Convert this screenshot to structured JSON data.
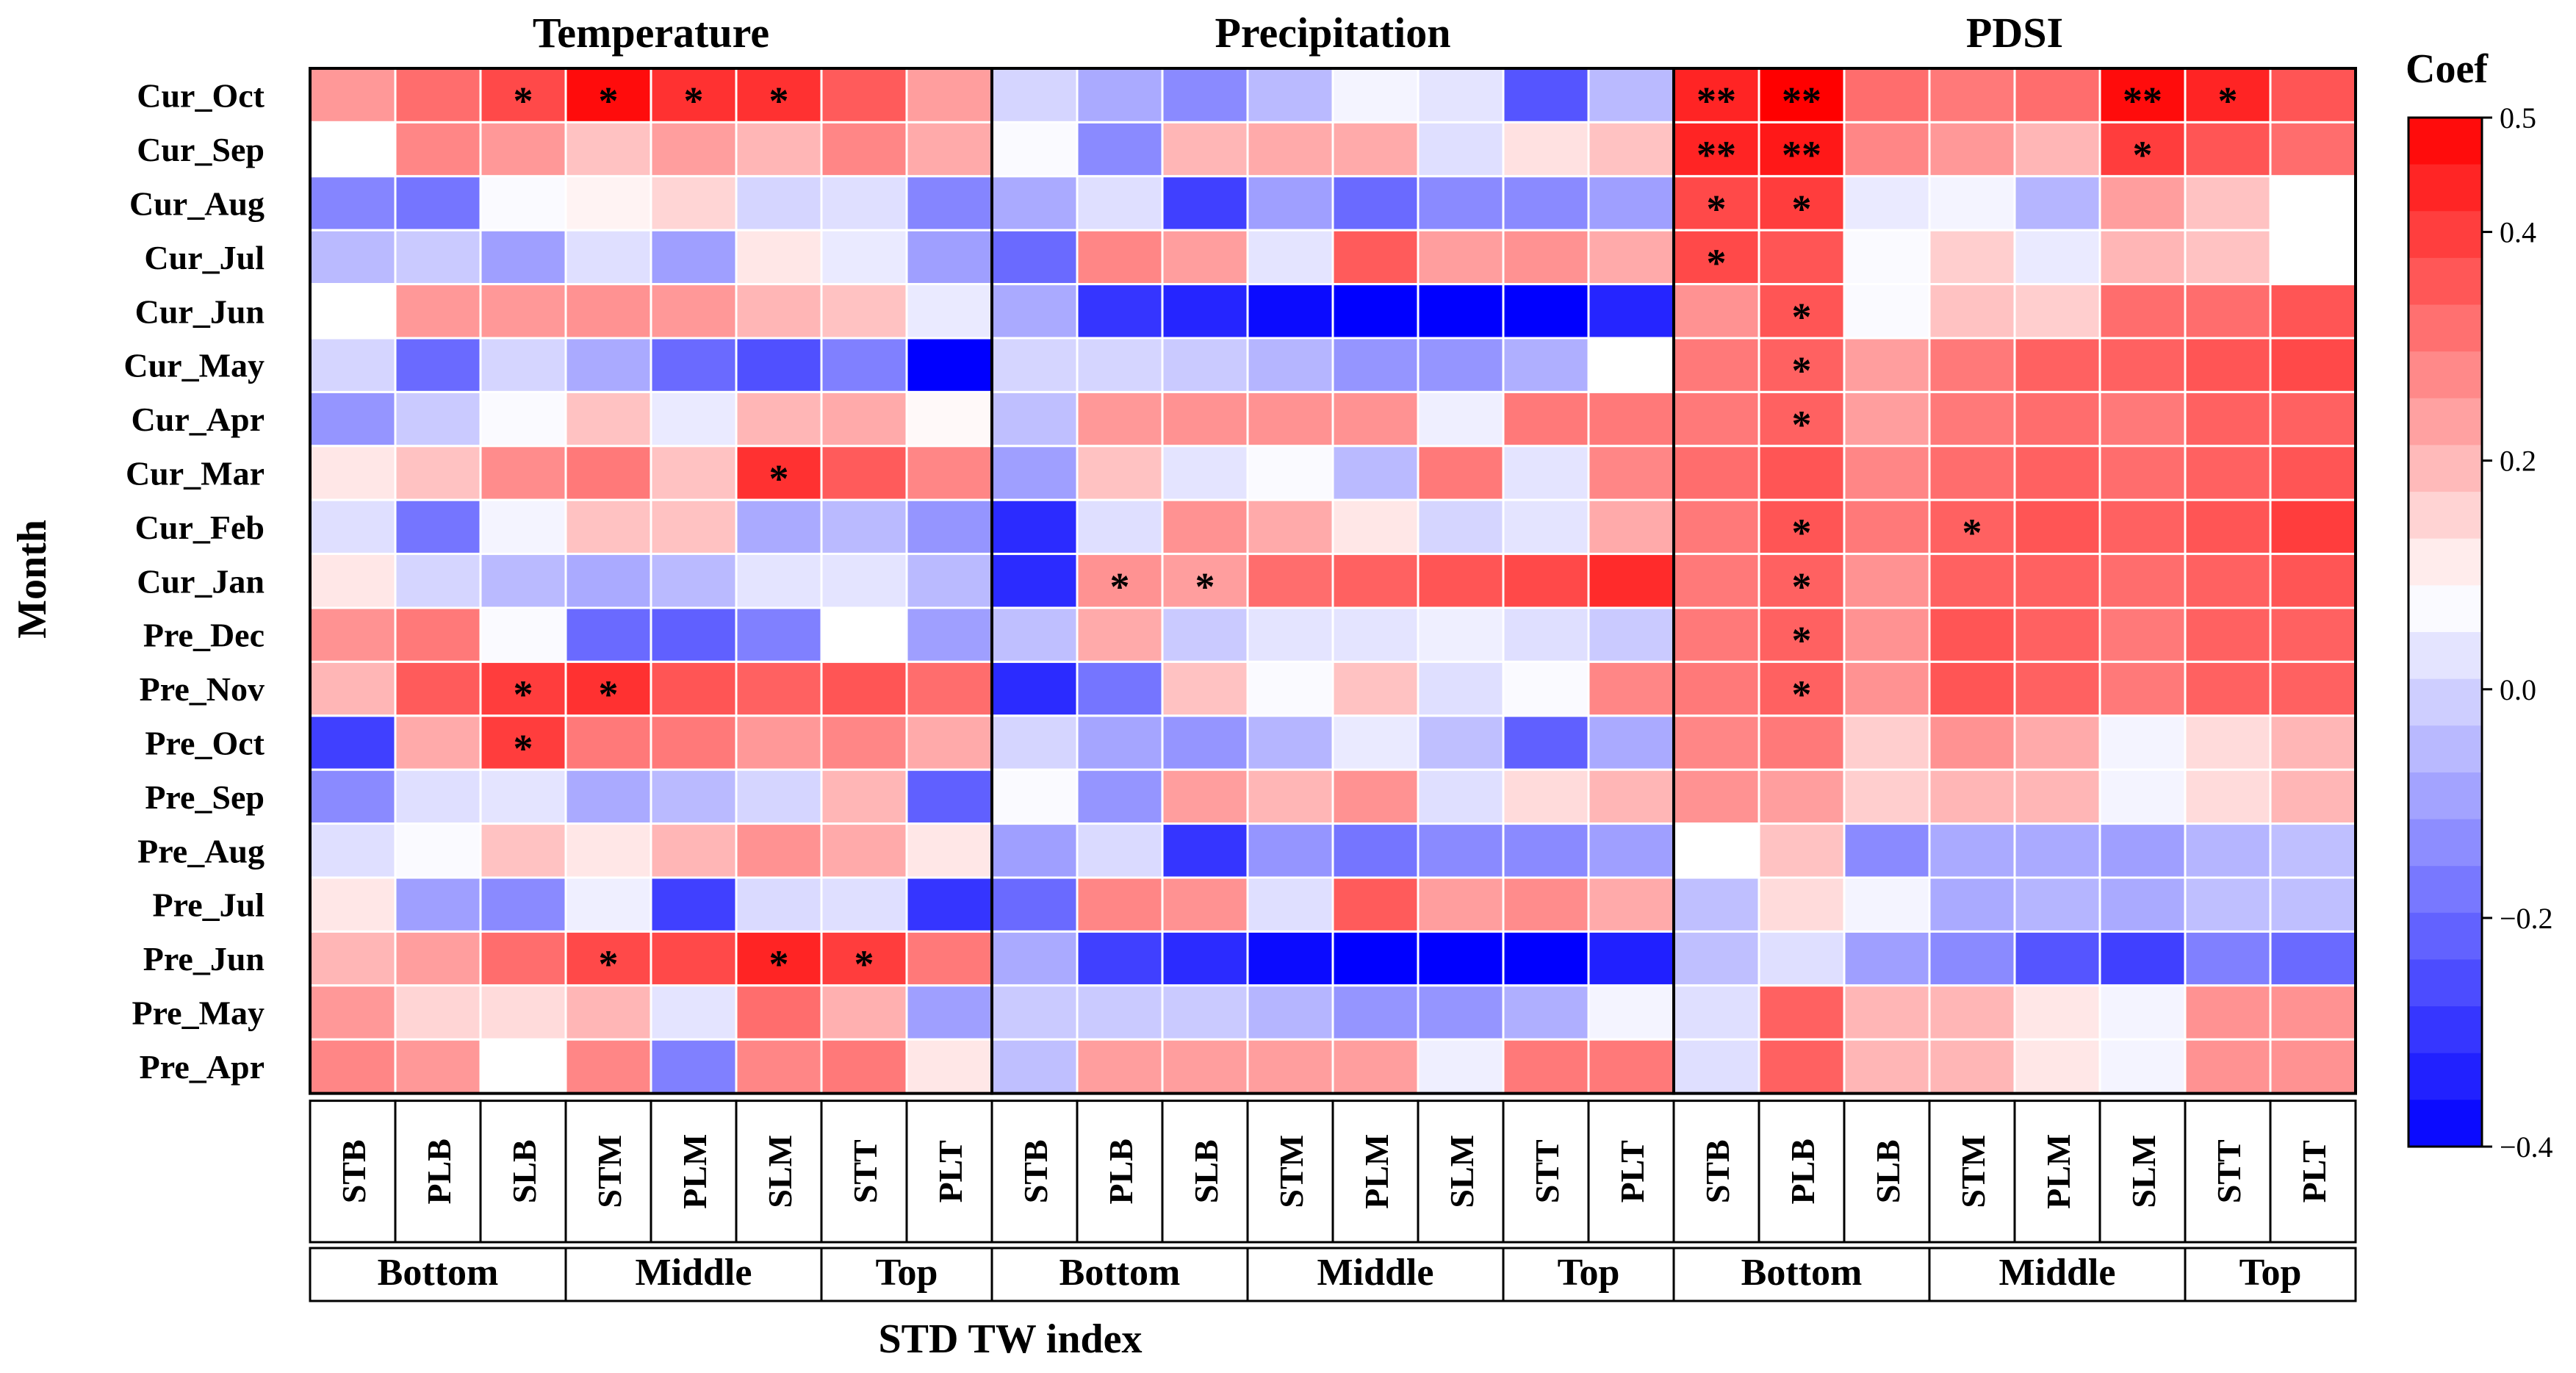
{
  "chart_data": {
    "type": "heatmap",
    "ylabel": "Month",
    "xlabel": "STD TW index",
    "colorbar": {
      "title": "Coef",
      "min": -0.4,
      "max": 0.5,
      "ticks": [
        "0.5",
        "0.4",
        "0.2",
        "0.0",
        "−0.2",
        "−0.4"
      ],
      "tick_values": [
        0.5,
        0.4,
        0.2,
        0.0,
        -0.2,
        -0.4
      ]
    },
    "colors": {
      "low": "#0000ff",
      "mid": "#ffffff",
      "high": "#ff0000",
      "mid_value": 0.08
    },
    "months": [
      "Cur_Oct",
      "Cur_Sep",
      "Cur_Aug",
      "Cur_Jul",
      "Cur_Jun",
      "Cur_May",
      "Cur_Apr",
      "Cur_Mar",
      "Cur_Feb",
      "Cur_Jan",
      "Pre_Dec",
      "Pre_Nov",
      "Pre_Oct",
      "Pre_Sep",
      "Pre_Aug",
      "Pre_Jul",
      "Pre_Jun",
      "Pre_May",
      "Pre_Apr"
    ],
    "indices": [
      "STB",
      "PLB",
      "SLB",
      "STM",
      "PLM",
      "SLM",
      "STT",
      "PLT"
    ],
    "groups": [
      {
        "label": "Bottom",
        "span": 3
      },
      {
        "label": "Middle",
        "span": 3
      },
      {
        "label": "Top",
        "span": 2
      }
    ],
    "panels": [
      {
        "title": "Temperature",
        "values": [
          [
            0.25,
            0.32,
            0.38,
            0.48,
            0.42,
            0.42,
            0.35,
            0.24
          ],
          [
            0.08,
            0.28,
            0.25,
            0.18,
            0.24,
            0.2,
            0.28,
            0.22
          ],
          [
            -0.15,
            -0.18,
            0.07,
            0.1,
            0.15,
            0.0,
            0.02,
            -0.15
          ],
          [
            -0.05,
            -0.02,
            -0.1,
            0.02,
            -0.1,
            0.12,
            0.04,
            -0.1
          ],
          [
            0.08,
            0.25,
            0.25,
            0.26,
            0.25,
            0.2,
            0.18,
            0.04
          ],
          [
            0.0,
            -0.2,
            0.0,
            -0.08,
            -0.2,
            -0.25,
            -0.16,
            -0.4
          ],
          [
            -0.12,
            -0.02,
            0.07,
            0.18,
            0.04,
            0.2,
            0.22,
            0.09
          ],
          [
            0.12,
            0.18,
            0.27,
            0.3,
            0.18,
            0.42,
            0.35,
            0.28
          ],
          [
            0.02,
            -0.18,
            0.06,
            0.18,
            0.18,
            -0.08,
            -0.05,
            -0.12
          ],
          [
            0.12,
            0.0,
            -0.05,
            -0.08,
            -0.05,
            0.03,
            0.03,
            -0.05
          ],
          [
            0.26,
            0.3,
            0.07,
            -0.2,
            -0.22,
            -0.16,
            0.08,
            -0.1
          ],
          [
            0.2,
            0.35,
            0.4,
            0.42,
            0.36,
            0.34,
            0.36,
            0.32
          ],
          [
            -0.28,
            0.22,
            0.4,
            0.3,
            0.3,
            0.25,
            0.28,
            0.22
          ],
          [
            -0.14,
            0.02,
            0.03,
            -0.08,
            -0.05,
            0.0,
            0.2,
            -0.22
          ],
          [
            0.02,
            0.07,
            0.18,
            0.12,
            0.2,
            0.26,
            0.22,
            0.12
          ],
          [
            0.12,
            -0.1,
            -0.14,
            0.05,
            -0.28,
            0.01,
            0.02,
            -0.3
          ],
          [
            0.2,
            0.24,
            0.32,
            0.38,
            0.38,
            0.44,
            0.4,
            0.3
          ],
          [
            0.25,
            0.15,
            0.14,
            0.2,
            0.03,
            0.32,
            0.21,
            -0.1
          ],
          [
            0.28,
            0.25,
            0.08,
            0.28,
            -0.16,
            0.28,
            0.3,
            0.12
          ]
        ],
        "stars": [
          [
            "",
            "",
            "*",
            "*",
            "*",
            "*",
            "",
            ""
          ],
          [
            "",
            "",
            "",
            "",
            "",
            "",
            "",
            ""
          ],
          [
            "",
            "",
            "",
            "",
            "",
            "",
            "",
            ""
          ],
          [
            "",
            "",
            "",
            "",
            "",
            "",
            "",
            ""
          ],
          [
            "",
            "",
            "",
            "",
            "",
            "",
            "",
            ""
          ],
          [
            "",
            "",
            "",
            "",
            "",
            "",
            "",
            ""
          ],
          [
            "",
            "",
            "",
            "",
            "",
            "",
            "",
            ""
          ],
          [
            "",
            "",
            "",
            "",
            "",
            "*",
            "",
            ""
          ],
          [
            "",
            "",
            "",
            "",
            "",
            "",
            "",
            ""
          ],
          [
            "",
            "",
            "",
            "",
            "",
            "",
            "",
            ""
          ],
          [
            "",
            "",
            "",
            "",
            "",
            "",
            "",
            ""
          ],
          [
            "",
            "",
            "*",
            "*",
            "",
            "",
            "",
            ""
          ],
          [
            "",
            "",
            "*",
            "",
            "",
            "",
            "",
            ""
          ],
          [
            "",
            "",
            "",
            "",
            "",
            "",
            "",
            ""
          ],
          [
            "",
            "",
            "",
            "",
            "",
            "",
            "",
            ""
          ],
          [
            "",
            "",
            "",
            "",
            "",
            "",
            "",
            ""
          ],
          [
            "",
            "",
            "",
            "*",
            "",
            "*",
            "*",
            ""
          ],
          [
            "",
            "",
            "",
            "",
            "",
            "",
            "",
            ""
          ],
          [
            "",
            "",
            "",
            "",
            "",
            "",
            "",
            ""
          ]
        ]
      },
      {
        "title": "Precipitation",
        "values": [
          [
            0.0,
            -0.08,
            -0.14,
            -0.05,
            0.06,
            0.03,
            -0.24,
            -0.05
          ],
          [
            0.07,
            -0.14,
            0.2,
            0.22,
            0.22,
            0.02,
            0.13,
            0.18
          ],
          [
            -0.08,
            0.02,
            -0.28,
            -0.1,
            -0.2,
            -0.14,
            -0.14,
            -0.1
          ],
          [
            -0.2,
            0.28,
            0.24,
            0.03,
            0.35,
            0.24,
            0.26,
            0.22
          ],
          [
            -0.08,
            -0.3,
            -0.33,
            -0.38,
            -0.4,
            -0.4,
            -0.4,
            -0.33
          ],
          [
            0.0,
            0.0,
            -0.02,
            -0.06,
            -0.12,
            -0.12,
            -0.07,
            0.08
          ],
          [
            -0.04,
            0.25,
            0.26,
            0.26,
            0.26,
            0.05,
            0.3,
            0.3
          ],
          [
            -0.1,
            0.18,
            0.03,
            0.07,
            -0.05,
            0.3,
            0.03,
            0.28
          ],
          [
            -0.32,
            0.02,
            0.26,
            0.22,
            0.12,
            0.0,
            0.03,
            0.22
          ],
          [
            -0.32,
            0.26,
            0.24,
            0.32,
            0.34,
            0.36,
            0.38,
            0.43
          ],
          [
            -0.04,
            0.22,
            -0.02,
            0.03,
            0.03,
            0.05,
            0.02,
            -0.02
          ],
          [
            -0.32,
            -0.18,
            0.18,
            0.07,
            0.18,
            0.02,
            0.07,
            0.28
          ],
          [
            0.0,
            -0.09,
            -0.12,
            -0.06,
            0.04,
            -0.04,
            -0.22,
            -0.08
          ],
          [
            0.07,
            -0.12,
            0.24,
            0.2,
            0.26,
            0.02,
            0.14,
            0.2
          ],
          [
            -0.1,
            0.01,
            -0.3,
            -0.12,
            -0.18,
            -0.14,
            -0.14,
            -0.1
          ],
          [
            -0.2,
            0.28,
            0.26,
            0.02,
            0.35,
            0.24,
            0.27,
            0.22
          ],
          [
            -0.08,
            -0.28,
            -0.32,
            -0.38,
            -0.4,
            -0.4,
            -0.4,
            -0.34
          ],
          [
            -0.02,
            -0.02,
            -0.02,
            -0.06,
            -0.12,
            -0.12,
            -0.07,
            0.06
          ],
          [
            -0.04,
            0.24,
            0.24,
            0.24,
            0.24,
            0.05,
            0.3,
            0.3
          ]
        ],
        "stars": [
          [
            "",
            "",
            "",
            "",
            "",
            "",
            "",
            ""
          ],
          [
            "",
            "",
            "",
            "",
            "",
            "",
            "",
            ""
          ],
          [
            "",
            "",
            "",
            "",
            "",
            "",
            "",
            ""
          ],
          [
            "",
            "",
            "",
            "",
            "",
            "",
            "",
            ""
          ],
          [
            "",
            "",
            "",
            "",
            "",
            "",
            "",
            ""
          ],
          [
            "",
            "",
            "",
            "",
            "",
            "",
            "",
            ""
          ],
          [
            "",
            "",
            "",
            "",
            "",
            "",
            "",
            ""
          ],
          [
            "",
            "",
            "",
            "",
            "",
            "",
            "",
            ""
          ],
          [
            "",
            "",
            "",
            "",
            "",
            "",
            "",
            ""
          ],
          [
            "",
            "*",
            "*",
            "",
            "",
            "",
            "",
            ""
          ],
          [
            "",
            "",
            "",
            "",
            "",
            "",
            "",
            ""
          ],
          [
            "",
            "",
            "",
            "",
            "",
            "",
            "",
            ""
          ],
          [
            "",
            "",
            "",
            "",
            "",
            "",
            "",
            ""
          ],
          [
            "",
            "",
            "",
            "",
            "",
            "",
            "",
            ""
          ],
          [
            "",
            "",
            "",
            "",
            "",
            "",
            "",
            ""
          ],
          [
            "",
            "",
            "",
            "",
            "",
            "",
            "",
            ""
          ],
          [
            "",
            "",
            "",
            "",
            "",
            "",
            "",
            ""
          ],
          [
            "",
            "",
            "",
            "",
            "",
            "",
            "",
            ""
          ],
          [
            "",
            "",
            "",
            "",
            "",
            "",
            "",
            ""
          ]
        ]
      },
      {
        "title": "PDSI",
        "values": [
          [
            0.44,
            0.5,
            0.32,
            0.3,
            0.32,
            0.48,
            0.44,
            0.36
          ],
          [
            0.44,
            0.46,
            0.28,
            0.25,
            0.2,
            0.4,
            0.36,
            0.32
          ],
          [
            0.38,
            0.4,
            0.04,
            0.06,
            -0.06,
            0.24,
            0.18,
            0.08
          ],
          [
            0.38,
            0.36,
            0.07,
            0.16,
            0.04,
            0.2,
            0.18,
            0.08
          ],
          [
            0.26,
            0.36,
            0.07,
            0.18,
            0.16,
            0.32,
            0.32,
            0.36
          ],
          [
            0.3,
            0.34,
            0.24,
            0.3,
            0.34,
            0.34,
            0.36,
            0.38
          ],
          [
            0.3,
            0.34,
            0.24,
            0.3,
            0.32,
            0.3,
            0.34,
            0.34
          ],
          [
            0.32,
            0.36,
            0.28,
            0.32,
            0.34,
            0.32,
            0.34,
            0.36
          ],
          [
            0.3,
            0.36,
            0.3,
            0.34,
            0.36,
            0.34,
            0.36,
            0.4
          ],
          [
            0.3,
            0.34,
            0.26,
            0.34,
            0.34,
            0.32,
            0.34,
            0.36
          ],
          [
            0.3,
            0.34,
            0.26,
            0.36,
            0.34,
            0.3,
            0.34,
            0.34
          ],
          [
            0.3,
            0.34,
            0.26,
            0.36,
            0.34,
            0.3,
            0.34,
            0.34
          ],
          [
            0.28,
            0.3,
            0.16,
            0.26,
            0.22,
            0.06,
            0.14,
            0.2
          ],
          [
            0.26,
            0.24,
            0.16,
            0.2,
            0.2,
            0.06,
            0.14,
            0.2
          ],
          [
            0.08,
            0.18,
            -0.14,
            -0.08,
            -0.08,
            -0.1,
            -0.06,
            -0.04
          ],
          [
            -0.04,
            0.14,
            0.06,
            -0.08,
            -0.06,
            -0.08,
            -0.04,
            -0.04
          ],
          [
            -0.04,
            0.02,
            -0.1,
            -0.14,
            -0.24,
            -0.28,
            -0.16,
            -0.2
          ],
          [
            0.02,
            0.34,
            0.2,
            0.2,
            0.12,
            0.06,
            0.26,
            0.26
          ],
          [
            0.02,
            0.34,
            0.2,
            0.2,
            0.12,
            0.06,
            0.26,
            0.26
          ]
        ],
        "stars": [
          [
            "**",
            "**",
            "",
            "",
            "",
            "**",
            "*",
            ""
          ],
          [
            "**",
            "**",
            "",
            "",
            "",
            "*",
            "",
            ""
          ],
          [
            "*",
            "*",
            "",
            "",
            "",
            "",
            "",
            ""
          ],
          [
            "*",
            "",
            "",
            "",
            "",
            "",
            "",
            ""
          ],
          [
            "",
            "*",
            "",
            "",
            "",
            "",
            "",
            ""
          ],
          [
            "",
            "*",
            "",
            "",
            "",
            "",
            "",
            ""
          ],
          [
            "",
            "*",
            "",
            "",
            "",
            "",
            "",
            ""
          ],
          [
            "",
            "",
            "",
            "",
            "",
            "",
            "",
            ""
          ],
          [
            "",
            "*",
            "",
            "*",
            "",
            "",
            "",
            ""
          ],
          [
            "",
            "*",
            "",
            "",
            "",
            "",
            "",
            ""
          ],
          [
            "",
            "*",
            "",
            "",
            "",
            "",
            "",
            ""
          ],
          [
            "",
            "*",
            "",
            "",
            "",
            "",
            "",
            ""
          ],
          [
            "",
            "",
            "",
            "",
            "",
            "",
            "",
            ""
          ],
          [
            "",
            "",
            "",
            "",
            "",
            "",
            "",
            ""
          ],
          [
            "",
            "",
            "",
            "",
            "",
            "",
            "",
            ""
          ],
          [
            "",
            "",
            "",
            "",
            "",
            "",
            "",
            ""
          ],
          [
            "",
            "",
            "",
            "",
            "",
            "",
            "",
            ""
          ],
          [
            "",
            "",
            "",
            "",
            "",
            "",
            "",
            ""
          ],
          [
            "",
            "",
            "",
            "",
            "",
            "",
            "",
            ""
          ]
        ]
      }
    ]
  }
}
